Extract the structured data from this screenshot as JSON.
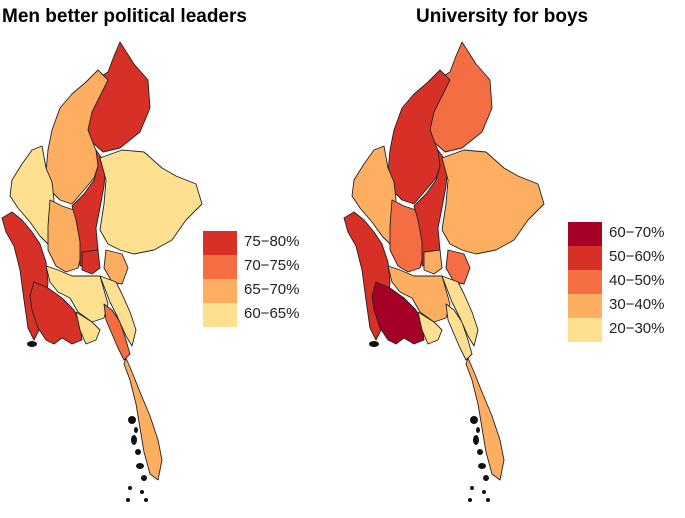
{
  "maps": [
    {
      "title": "Men better political leaders",
      "legend": [
        {
          "label": "75−80%",
          "color": "#d73027"
        },
        {
          "label": "70−75%",
          "color": "#f46d43"
        },
        {
          "label": "65−70%",
          "color": "#fdae61"
        },
        {
          "label": "60−65%",
          "color": "#fee090"
        }
      ],
      "regions": {
        "kachin": "75-80%",
        "sagaing": "65-70%",
        "chin": "60-65%",
        "rakhine": "75-80%",
        "magway": "65-70%",
        "mandalay": "75-80%",
        "shan": "60-65%",
        "kayah": "65-70%",
        "naypyitaw": "75-80%",
        "bago": "60-65%",
        "ayeyarwady": "75-80%",
        "yangon": "60-65%",
        "mon": "70-75%",
        "kayin": "60-65%",
        "tanintharyi": "65-70%"
      }
    },
    {
      "title": "University for boys",
      "legend": [
        {
          "label": "60−70%",
          "color": "#a50026"
        },
        {
          "label": "50−60%",
          "color": "#d73027"
        },
        {
          "label": "40−50%",
          "color": "#f46d43"
        },
        {
          "label": "30−40%",
          "color": "#fdae61"
        },
        {
          "label": "20−30%",
          "color": "#fee090"
        }
      ],
      "regions": {
        "kachin": "40-50%",
        "sagaing": "50-60%",
        "chin": "30-40%",
        "rakhine": "50-60%",
        "magway": "40-50%",
        "mandalay": "50-60%",
        "shan": "30-40%",
        "kayah": "40-50%",
        "naypyitaw": "30-40%",
        "bago": "30-40%",
        "ayeyarwady": "60-70%",
        "yangon": "20-30%",
        "mon": "20-30%",
        "kayin": "20-30%",
        "tanintharyi": "30-40%"
      }
    }
  ]
}
